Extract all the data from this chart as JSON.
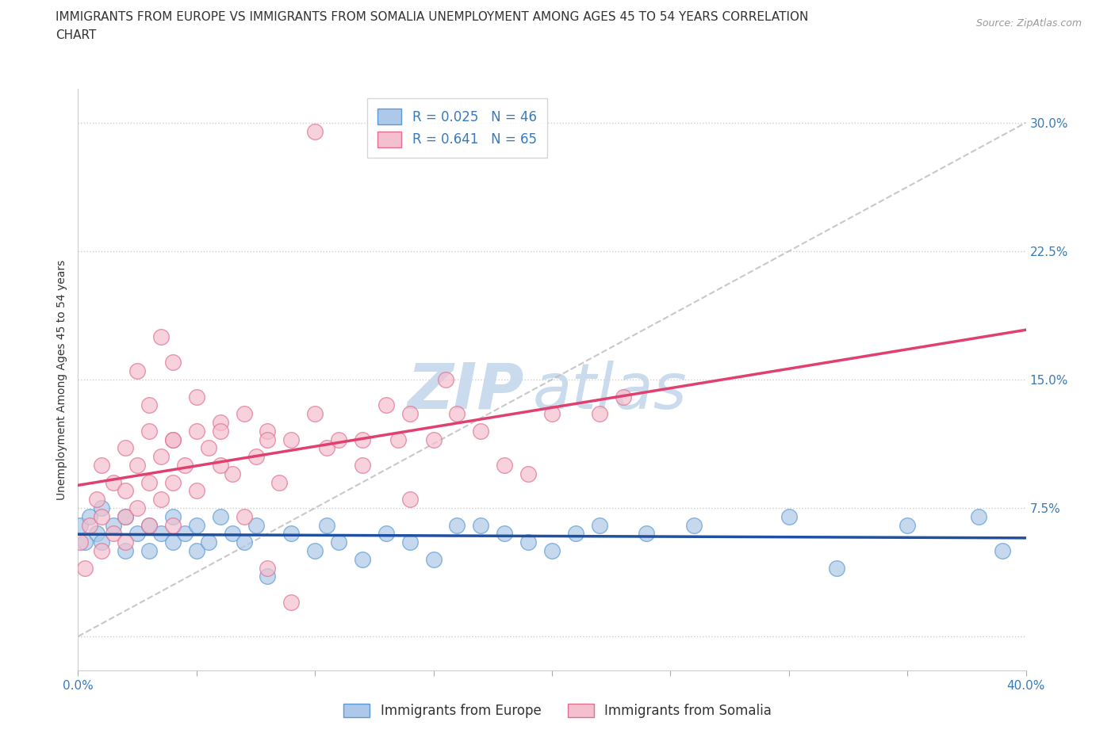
{
  "title_line1": "IMMIGRANTS FROM EUROPE VS IMMIGRANTS FROM SOMALIA UNEMPLOYMENT AMONG AGES 45 TO 54 YEARS CORRELATION",
  "title_line2": "CHART",
  "source": "Source: ZipAtlas.com",
  "xlabel": "",
  "ylabel": "Unemployment Among Ages 45 to 54 years",
  "xlim": [
    0.0,
    0.4
  ],
  "ylim": [
    -0.02,
    0.32
  ],
  "xticks": [
    0.0,
    0.05,
    0.1,
    0.15,
    0.2,
    0.25,
    0.3,
    0.35,
    0.4
  ],
  "yticks": [
    0.0,
    0.075,
    0.15,
    0.225,
    0.3
  ],
  "xticklabels": [
    "0.0%",
    "",
    "",
    "",
    "",
    "",
    "",
    "",
    "40.0%"
  ],
  "yticklabels": [
    "",
    "7.5%",
    "15.0%",
    "22.5%",
    "30.0%"
  ],
  "europe_color": "#adc8e8",
  "europe_edge": "#5b9bd5",
  "somalia_color": "#f4bfce",
  "somalia_edge": "#e07090",
  "europe_line_color": "#2050a0",
  "somalia_line_color": "#e04070",
  "ref_line_color": "#bbbbbb",
  "legend_europe_label": "R = 0.025   N = 46",
  "legend_somalia_label": "R = 0.641   N = 65",
  "legend_label_europe": "Immigrants from Europe",
  "legend_label_somalia": "Immigrants from Somalia",
  "watermark": "ZIPatlas",
  "watermark_color": "#c5d8ec",
  "background_color": "#ffffff",
  "grid_color": "#c8c8c8",
  "europe_scatter_x": [
    0.001,
    0.003,
    0.005,
    0.008,
    0.01,
    0.01,
    0.015,
    0.02,
    0.02,
    0.025,
    0.03,
    0.03,
    0.035,
    0.04,
    0.04,
    0.045,
    0.05,
    0.05,
    0.055,
    0.06,
    0.065,
    0.07,
    0.075,
    0.08,
    0.09,
    0.1,
    0.105,
    0.11,
    0.12,
    0.13,
    0.14,
    0.15,
    0.16,
    0.17,
    0.18,
    0.19,
    0.2,
    0.21,
    0.22,
    0.24,
    0.26,
    0.3,
    0.32,
    0.35,
    0.38,
    0.39
  ],
  "europe_scatter_y": [
    0.065,
    0.055,
    0.07,
    0.06,
    0.055,
    0.075,
    0.065,
    0.05,
    0.07,
    0.06,
    0.05,
    0.065,
    0.06,
    0.055,
    0.07,
    0.06,
    0.05,
    0.065,
    0.055,
    0.07,
    0.06,
    0.055,
    0.065,
    0.035,
    0.06,
    0.05,
    0.065,
    0.055,
    0.045,
    0.06,
    0.055,
    0.045,
    0.065,
    0.065,
    0.06,
    0.055,
    0.05,
    0.06,
    0.065,
    0.06,
    0.065,
    0.07,
    0.04,
    0.065,
    0.07,
    0.05
  ],
  "somalia_scatter_x": [
    0.001,
    0.003,
    0.005,
    0.008,
    0.01,
    0.01,
    0.01,
    0.015,
    0.015,
    0.02,
    0.02,
    0.02,
    0.02,
    0.025,
    0.025,
    0.03,
    0.03,
    0.03,
    0.035,
    0.035,
    0.04,
    0.04,
    0.04,
    0.045,
    0.05,
    0.05,
    0.055,
    0.06,
    0.065,
    0.07,
    0.075,
    0.08,
    0.085,
    0.09,
    0.1,
    0.105,
    0.11,
    0.12,
    0.13,
    0.135,
    0.14,
    0.15,
    0.155,
    0.16,
    0.17,
    0.18,
    0.19,
    0.2,
    0.22,
    0.23,
    0.025,
    0.03,
    0.035,
    0.04,
    0.05,
    0.06,
    0.07,
    0.08,
    0.09,
    0.1,
    0.12,
    0.14,
    0.04,
    0.06,
    0.08
  ],
  "somalia_scatter_y": [
    0.055,
    0.04,
    0.065,
    0.08,
    0.1,
    0.07,
    0.05,
    0.09,
    0.06,
    0.11,
    0.085,
    0.07,
    0.055,
    0.1,
    0.075,
    0.12,
    0.09,
    0.065,
    0.105,
    0.08,
    0.115,
    0.09,
    0.065,
    0.1,
    0.12,
    0.085,
    0.11,
    0.125,
    0.095,
    0.13,
    0.105,
    0.12,
    0.09,
    0.115,
    0.13,
    0.11,
    0.115,
    0.1,
    0.135,
    0.115,
    0.13,
    0.115,
    0.15,
    0.13,
    0.12,
    0.1,
    0.095,
    0.13,
    0.13,
    0.14,
    0.155,
    0.135,
    0.175,
    0.115,
    0.14,
    0.1,
    0.07,
    0.04,
    0.02,
    0.295,
    0.115,
    0.08,
    0.16,
    0.12,
    0.115
  ],
  "title_fontsize": 11,
  "axis_label_fontsize": 10,
  "tick_fontsize": 11,
  "legend_fontsize": 12
}
